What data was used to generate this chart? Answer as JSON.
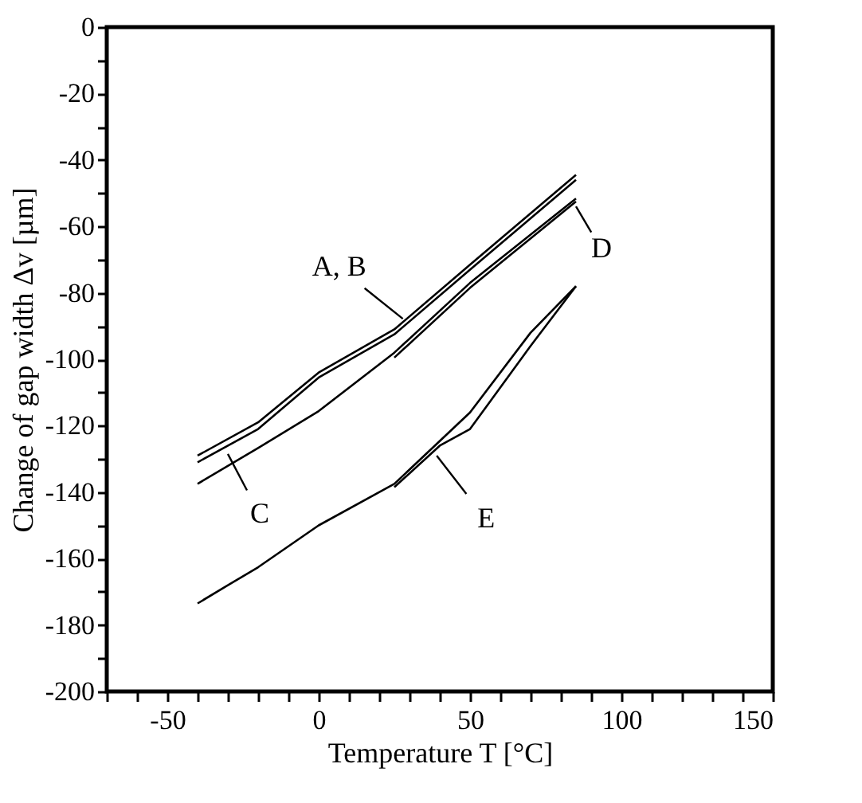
{
  "chart_data": {
    "type": "line",
    "xlabel": "Temperature T [°C]",
    "ylabel": "Change of gap width Δv [µm]",
    "xlim": [
      -70,
      150
    ],
    "ylim": [
      -200,
      0
    ],
    "xticks": [
      {
        "value": -70,
        "label": null
      },
      {
        "value": -60,
        "label": null
      },
      -50,
      {
        "value": -40,
        "label": null
      },
      {
        "value": -30,
        "label": null
      },
      {
        "value": -20,
        "label": null
      },
      {
        "value": -10,
        "label": null
      },
      0,
      {
        "value": 10,
        "label": null
      },
      {
        "value": 20,
        "label": null
      },
      {
        "value": 30,
        "label": null
      },
      {
        "value": 40,
        "label": null
      },
      50,
      {
        "value": 60,
        "label": null
      },
      {
        "value": 70,
        "label": null
      },
      {
        "value": 80,
        "label": null
      },
      {
        "value": 90,
        "label": null
      },
      100,
      {
        "value": 110,
        "label": null
      },
      {
        "value": 120,
        "label": null
      },
      {
        "value": 130,
        "label": null
      },
      {
        "value": 140,
        "label": null
      },
      150
    ],
    "yticks": [
      -200,
      {
        "value": -190,
        "label": null
      },
      -180,
      {
        "value": -170,
        "label": null
      },
      -160,
      {
        "value": -150,
        "label": null
      },
      -140,
      {
        "value": -130,
        "label": null
      },
      -120,
      {
        "value": -110,
        "label": null
      },
      -100,
      {
        "value": -90,
        "label": null
      },
      -80,
      {
        "value": -70,
        "label": null
      },
      -60,
      {
        "value": -50,
        "label": null
      },
      -40,
      {
        "value": -30,
        "label": null
      },
      -20,
      {
        "value": -10,
        "label": null
      },
      0
    ],
    "grid": false,
    "legend": false,
    "marker": "none",
    "line_style": "solid",
    "series": [
      {
        "color": "#000000",
        "x": [
          -40,
          -20,
          0,
          25,
          50,
          85
        ],
        "values": [
          -129,
          -119,
          -104,
          -91,
          -71.5,
          -44.5
        ]
      },
      {
        "color": "#000000",
        "x": [
          -40,
          -20,
          0,
          25,
          50,
          85
        ],
        "values": [
          -131,
          -121,
          -105.5,
          -92.5,
          -73,
          -46
        ]
      },
      {
        "color": "#000000",
        "x": [
          -40,
          -20,
          0,
          25,
          50,
          85
        ],
        "values": [
          -137.5,
          -126.7,
          -115.6,
          -98,
          -77,
          -51.6
        ]
      },
      {
        "color": "#000000",
        "x": [
          25,
          50,
          85
        ],
        "values": [
          -99.5,
          -78.5,
          -52.5
        ]
      },
      {
        "color": "#000000",
        "x": [
          -40,
          -30,
          -20,
          0,
          25,
          50,
          70,
          85
        ],
        "values": [
          -173.5,
          -168,
          -162.6,
          -150,
          -137.5,
          -116,
          -92,
          -78
        ]
      },
      {
        "color": "#000000",
        "x": [
          25,
          40,
          50,
          70,
          85
        ],
        "values": [
          -138.5,
          -126,
          -121,
          -96,
          -78
        ]
      }
    ],
    "annotations": [
      {
        "text": "A, B",
        "x": 27.8,
        "y": -87.8
      },
      {
        "text": "C",
        "x": -30,
        "y": -128.5
      },
      {
        "text": "D",
        "x": 85,
        "y": -54
      },
      {
        "text": "E",
        "x": 39,
        "y": -129
      }
    ]
  }
}
